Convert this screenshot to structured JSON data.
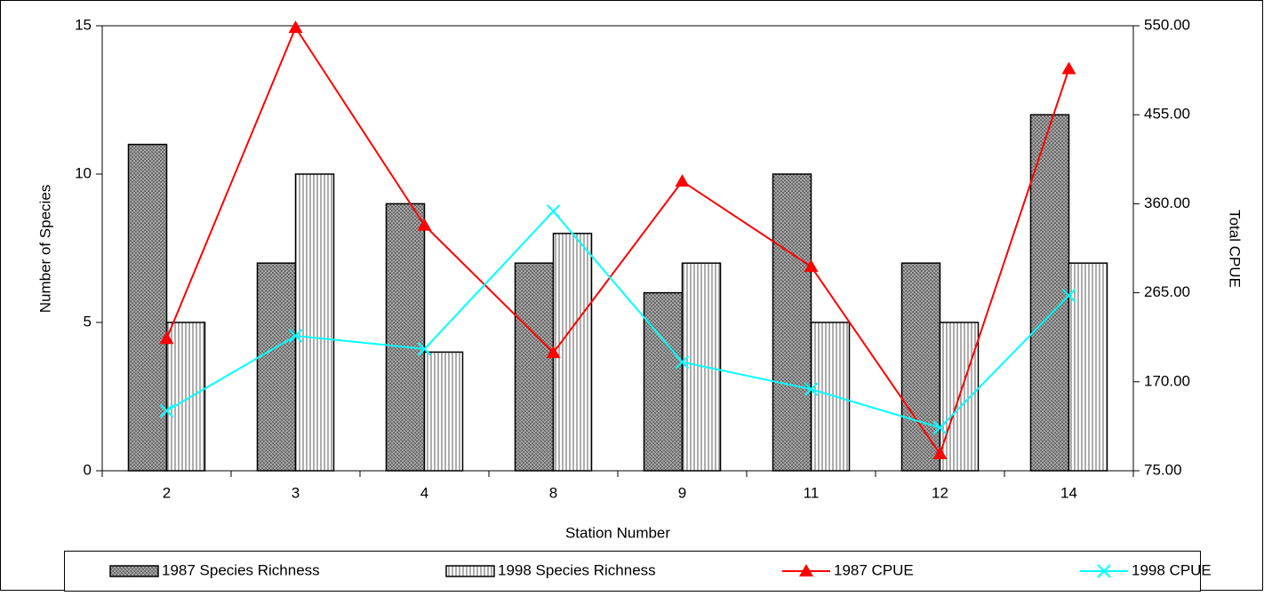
{
  "chart_data": {
    "type": "bar-line",
    "x_label": "Station Number",
    "y_label": "Number of Species",
    "y2_label": "Total CPUE",
    "categories": [
      "2",
      "3",
      "4",
      "8",
      "9",
      "11",
      "12",
      "14"
    ],
    "ylim": [
      0,
      15
    ],
    "yticks": [
      0,
      5,
      10,
      15
    ],
    "y2lim": [
      75,
      550
    ],
    "y2ticks": [
      {
        "value": 75,
        "label": "75.00"
      },
      {
        "value": 170,
        "label": "170.00"
      },
      {
        "value": 265,
        "label": "265.00"
      },
      {
        "value": 360,
        "label": "360.00"
      },
      {
        "value": 455,
        "label": "455.00"
      },
      {
        "value": 550,
        "label": "550.00"
      }
    ],
    "legend": "bottom",
    "series": [
      {
        "name": "1987 Species Richness",
        "type": "bar",
        "color": "#8c8c8c",
        "pattern": "crosshatch",
        "values": [
          11,
          7,
          9,
          7,
          6,
          10,
          7,
          12
        ]
      },
      {
        "name": "1998 Species Richness",
        "type": "bar",
        "color": "#ffffff",
        "pattern": "vertical",
        "values": [
          5,
          10,
          4,
          8,
          7,
          5,
          5,
          7
        ]
      },
      {
        "name": "1987 CPUE",
        "type": "line",
        "axis": "y2",
        "color": "#ff0000",
        "marker": "triangle",
        "values": [
          216,
          548,
          337,
          201,
          384,
          293,
          93,
          504
        ]
      },
      {
        "name": "1998 CPUE",
        "type": "line",
        "axis": "y2",
        "color": "#00ffff",
        "marker": "x",
        "values": [
          139,
          219,
          205,
          352,
          191,
          162,
          121,
          262
        ]
      }
    ]
  }
}
